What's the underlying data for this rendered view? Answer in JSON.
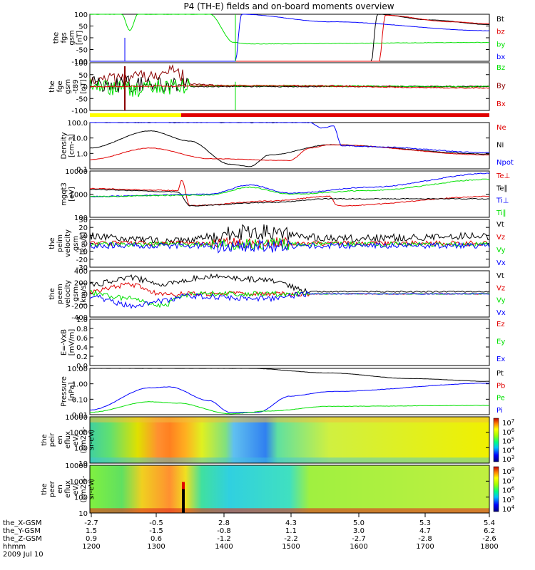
{
  "title": "P4 (TH-E) fields and on-board moments overview",
  "date": "2009 Jul 10",
  "colors": {
    "black": "#000000",
    "red": "#e00000",
    "green": "#00e000",
    "blue": "#0000ff",
    "darkred": "#8b0000",
    "yellow": "#ffff00"
  },
  "chart_data": [
    {
      "type": "line",
      "id": "fgs",
      "ylabel": [
        "the",
        "fgs",
        "gsm",
        "[nT]"
      ],
      "ylim": [
        -100,
        100
      ],
      "yticks": [
        "100",
        "50",
        "0",
        "-50",
        "-100"
      ],
      "series": [
        {
          "name": "Bt",
          "color": "black"
        },
        {
          "name": "bz",
          "color": "red"
        },
        {
          "name": "by",
          "color": "green"
        },
        {
          "name": "bx",
          "color": "blue"
        }
      ]
    },
    {
      "type": "line",
      "id": "fge",
      "ylabel": [
        "the",
        "fge",
        "gsm",
        "-t89",
        "[nT]"
      ],
      "ylim": [
        -100,
        100
      ],
      "yticks": [
        "100",
        "50",
        "0",
        "-50",
        "-100"
      ],
      "series": [
        {
          "name": "Bz",
          "color": "green"
        },
        {
          "name": "By",
          "color": "darkred"
        },
        {
          "name": "Bx",
          "color": "red"
        }
      ]
    },
    {
      "type": "line",
      "id": "density",
      "ylabel": [
        "Density",
        "[cm-3]"
      ],
      "scale": "log",
      "ylim": [
        0.1,
        100
      ],
      "yticks": [
        "100.0",
        "10.0",
        "1.0",
        "0.1"
      ],
      "series": [
        {
          "name": "Ne",
          "color": "red"
        },
        {
          "name": "Ni",
          "color": "black"
        },
        {
          "name": "Npot",
          "color": "blue"
        }
      ]
    },
    {
      "type": "line",
      "id": "temperature",
      "ylabel": [
        "mgqt3",
        "[eV]"
      ],
      "scale": "log",
      "ylim": [
        100,
        10000
      ],
      "yticks": [
        "10000",
        "1000",
        "100"
      ],
      "series": [
        {
          "name": "Te⊥",
          "color": "red"
        },
        {
          "name": "Te∥",
          "color": "black"
        },
        {
          "name": "Ti⊥",
          "color": "blue"
        },
        {
          "name": "Ti∥",
          "color": "green"
        }
      ]
    },
    {
      "type": "line",
      "id": "peim",
      "ylabel": [
        "the",
        "peim",
        "velocity",
        "gsm",
        "[km/s]"
      ],
      "ylim": [
        -30,
        30
      ],
      "yticks": [
        "30",
        "20",
        "10",
        "0",
        "-10",
        "-20",
        "-30"
      ],
      "series": [
        {
          "name": "Vt",
          "color": "black"
        },
        {
          "name": "Vz",
          "color": "red"
        },
        {
          "name": "Vy",
          "color": "green"
        },
        {
          "name": "Vx",
          "color": "blue"
        }
      ]
    },
    {
      "type": "line",
      "id": "peem",
      "ylabel": [
        "the",
        "peem",
        "velocity",
        "gsm",
        "[km/s]"
      ],
      "ylim": [
        -400,
        400
      ],
      "yticks": [
        "400",
        "200",
        "0",
        "-200",
        "-400"
      ],
      "series": [
        {
          "name": "Vt",
          "color": "black"
        },
        {
          "name": "Vz",
          "color": "red"
        },
        {
          "name": "Vy",
          "color": "green"
        },
        {
          "name": "Vx",
          "color": "blue"
        }
      ]
    },
    {
      "type": "line",
      "id": "efield",
      "ylabel": [
        "E=-VxB",
        "[mV/m]"
      ],
      "ylim": [
        0,
        1
      ],
      "yticks": [
        "1.0",
        "0.8",
        "0.6",
        "0.4",
        "0.2",
        "0.0"
      ],
      "series": [
        {
          "name": "Ez",
          "color": "red"
        },
        {
          "name": "Ey",
          "color": "green"
        },
        {
          "name": "Ex",
          "color": "blue"
        }
      ]
    },
    {
      "type": "line",
      "id": "pressure",
      "ylabel": [
        "Pressure",
        "[nPa]"
      ],
      "scale": "log",
      "ylim": [
        0.01,
        10
      ],
      "yticks": [
        "10.00",
        "1.00",
        "0.10",
        "0.01"
      ],
      "series": [
        {
          "name": "Pt",
          "color": "black"
        },
        {
          "name": "Pb",
          "color": "red"
        },
        {
          "name": "Pe",
          "color": "green"
        },
        {
          "name": "Pi",
          "color": "blue"
        }
      ]
    },
    {
      "type": "heatmap",
      "id": "peir",
      "ylabel": [
        "the",
        "peir",
        "en",
        "eflux",
        "eV/",
        "(cm2-s-",
        "sr-eV)"
      ],
      "yticks": [
        "10000",
        "1000",
        "100",
        "10"
      ],
      "colorbar": [
        "10^7",
        "10^6",
        "10^5",
        "10^4",
        "10^3"
      ]
    },
    {
      "type": "heatmap",
      "id": "peer",
      "ylabel": [
        "the",
        "peer",
        "en",
        "eflux",
        "eV/",
        "(cm2-s-",
        "sr-eV)"
      ],
      "yticks": [
        "10000",
        "1000",
        "100",
        "10"
      ],
      "colorbar": [
        "10^8",
        "10^7",
        "10^6",
        "10^5",
        "10^4"
      ]
    }
  ],
  "ephemeris": {
    "labels": [
      "the_X-GSM",
      "the_Y-GSM",
      "the_Z-GSM",
      "hhmm"
    ],
    "rows": [
      [
        "-2.7",
        "-0.5",
        "2.8",
        "4.3",
        "5.0",
        "5.3",
        "5.4"
      ],
      [
        "1.5",
        "-1.5",
        "-0.8",
        "1.1",
        "3.0",
        "4.7",
        "6.2"
      ],
      [
        "0.9",
        "0.6",
        "-1.2",
        "-2.2",
        "-2.7",
        "-2.8",
        "-2.6"
      ],
      [
        "1200",
        "1300",
        "1400",
        "1500",
        "1600",
        "1700",
        "1800"
      ]
    ]
  }
}
